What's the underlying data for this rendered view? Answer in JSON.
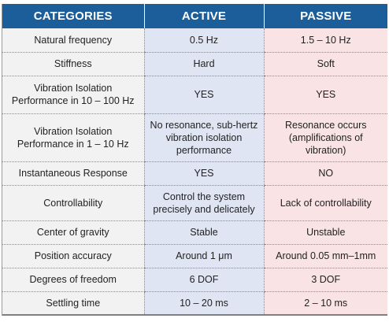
{
  "headers": {
    "categories": "CATEGORIES",
    "active": "ACTIVE",
    "passive": "PASSIVE"
  },
  "rows": [
    {
      "category": "Natural frequency",
      "active": "0.5 Hz",
      "passive": "1.5 – 10 Hz"
    },
    {
      "category": "Stiffness",
      "active": "Hard",
      "passive": "Soft"
    },
    {
      "category": "Vibration Isolation Performance in 10 – 100 Hz",
      "active": "YES",
      "passive": "YES"
    },
    {
      "category": "Vibration Isolation Performance in 1 – 10 Hz",
      "active": "No resonance, sub-hertz vibration isolation performance",
      "passive": "Resonance occurs (amplifications of vibration)"
    },
    {
      "category": "Instantaneous Response",
      "active": "YES",
      "passive": "NO"
    },
    {
      "category": "Controllability",
      "active": "Control the system precisely and delicately",
      "passive": "Lack of controllability"
    },
    {
      "category": "Center of gravity",
      "active": "Stable",
      "passive": "Unstable"
    },
    {
      "category": "Position accuracy",
      "active": "Around 1 μm",
      "passive": "Around 0.05 mm–1mm"
    },
    {
      "category": "Degrees of freedom",
      "active": "6 DOF",
      "passive": "3 DOF"
    },
    {
      "category": "Settling time",
      "active": "10 – 20 ms",
      "passive": "2 – 10 ms"
    }
  ],
  "colors": {
    "header": "#1b5e9a",
    "category_cell": "#f2f2f2",
    "active_cell": "#dfe5f3",
    "passive_cell": "#f9e3e4"
  }
}
